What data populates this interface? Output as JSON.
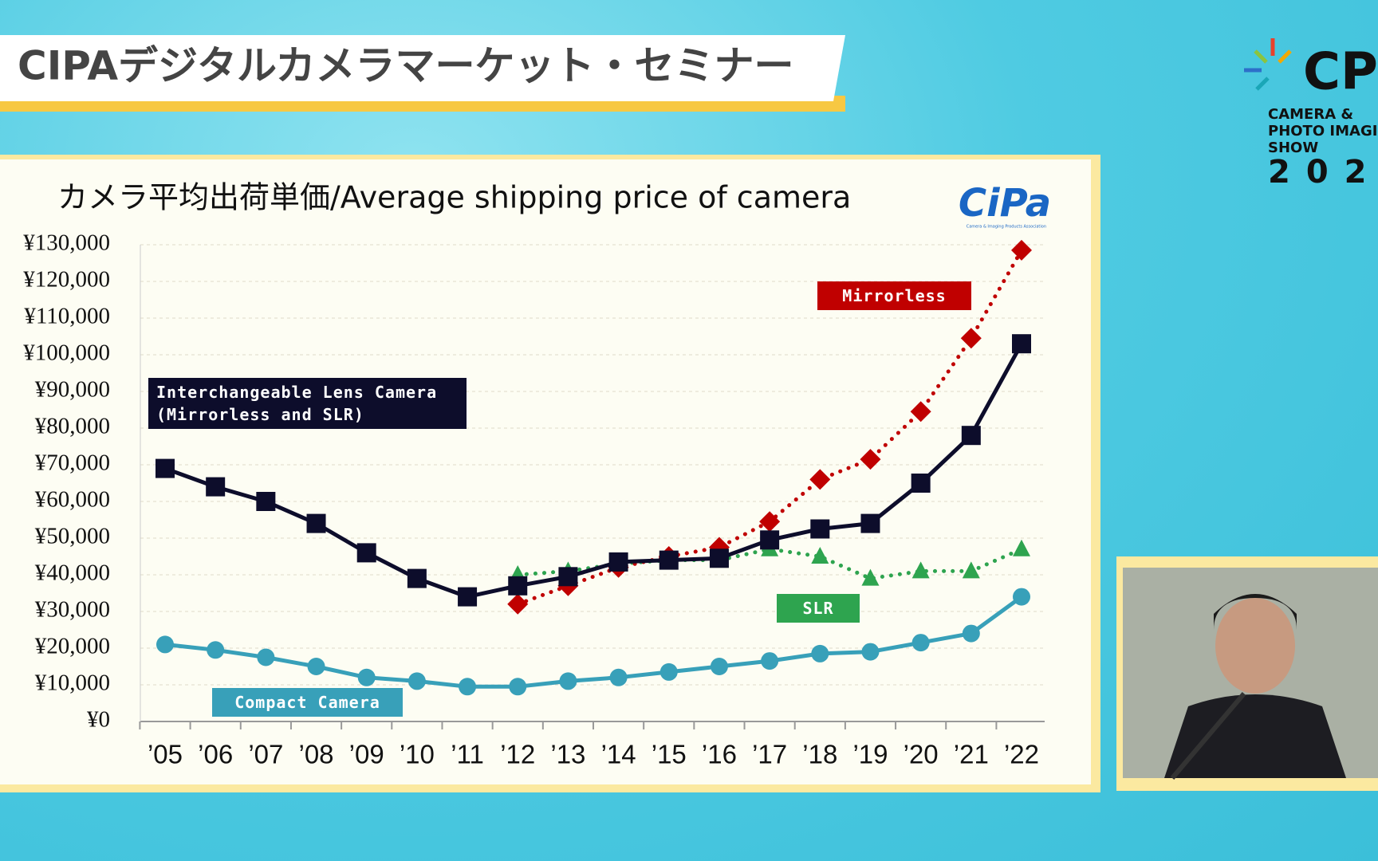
{
  "header": {
    "title": "CIPAデジタルカメラマーケット・セミナー"
  },
  "event_logo": {
    "mark": "CP",
    "lines": [
      "CAMERA &",
      "PHOTO IMAGIN",
      "SHOW"
    ],
    "year": "202"
  },
  "slide_logo": {
    "brand": "CiPa",
    "caption": "Camera & Imaging Products Association"
  },
  "chart_data": {
    "type": "line",
    "title": "カメラ平均出荷単価/Average shipping price of camera",
    "categories": [
      "’05",
      "’06",
      "’07",
      "’08",
      "’09",
      "’10",
      "’11",
      "’12",
      "’13",
      "’14",
      "’15",
      "’16",
      "’17",
      "’18",
      "’19",
      "’20",
      "’21",
      "’22"
    ],
    "series": [
      {
        "name": "Interchangeable Lens Camera\n(Mirrorless and SLR)",
        "color": "#0d0d2b",
        "marker": "square",
        "line_style": "solid",
        "values": [
          69000,
          64000,
          60000,
          54000,
          46000,
          39000,
          34000,
          37000,
          39500,
          43500,
          44000,
          44500,
          49500,
          52500,
          54000,
          65000,
          78000,
          103000
        ]
      },
      {
        "name": "Mirrorless",
        "color": "#c00000",
        "marker": "diamond",
        "line_style": "dotted",
        "values": [
          null,
          null,
          null,
          null,
          null,
          null,
          null,
          32000,
          37000,
          42000,
          45000,
          47500,
          54500,
          66000,
          71500,
          84500,
          104500,
          128500
        ]
      },
      {
        "name": "SLR",
        "color": "#2ea44f",
        "marker": "triangle",
        "line_style": "dotted",
        "values": [
          null,
          null,
          null,
          null,
          null,
          null,
          null,
          40000,
          41000,
          43000,
          44000,
          44000,
          47000,
          45000,
          39000,
          41000,
          41000,
          47000
        ]
      },
      {
        "name": "Compact Camera",
        "color": "#38a0b9",
        "marker": "circle",
        "line_style": "solid",
        "values": [
          21000,
          19500,
          17500,
          15000,
          12000,
          11000,
          9500,
          9500,
          11000,
          12000,
          13500,
          15000,
          16500,
          18500,
          19000,
          21500,
          24000,
          34000
        ]
      }
    ],
    "ylim": [
      0,
      130000
    ],
    "yticks": [
      {
        "value": 0,
        "label": "¥0"
      },
      {
        "value": 10000,
        "label": "¥10,000"
      },
      {
        "value": 20000,
        "label": "¥20,000"
      },
      {
        "value": 30000,
        "label": "¥30,000"
      },
      {
        "value": 40000,
        "label": "¥40,000"
      },
      {
        "value": 50000,
        "label": "¥50,000"
      },
      {
        "value": 60000,
        "label": "¥60,000"
      },
      {
        "value": 70000,
        "label": "¥70,000"
      },
      {
        "value": 80000,
        "label": "¥80,000"
      },
      {
        "value": 90000,
        "label": "¥90,000"
      },
      {
        "value": 100000,
        "label": "¥100,000"
      },
      {
        "value": 110000,
        "label": "¥110,000"
      },
      {
        "value": 120000,
        "label": "¥120,000"
      },
      {
        "value": 130000,
        "label": "¥130,000"
      }
    ],
    "grid": true
  }
}
